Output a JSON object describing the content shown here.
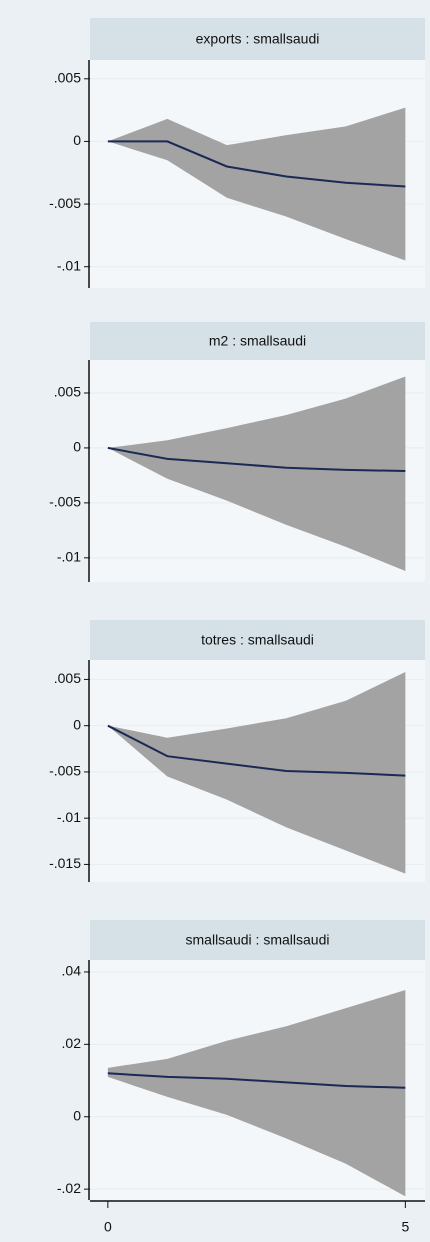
{
  "chart_data": [
    {
      "type": "line",
      "title": "exports : smallsaudi",
      "x": [
        0,
        1,
        2,
        3,
        4,
        5
      ],
      "values": [
        0,
        0,
        -0.002,
        -0.0028,
        -0.0033,
        -0.0036
      ],
      "lower": [
        0,
        -0.0015,
        -0.0045,
        -0.006,
        -0.0078,
        -0.0095
      ],
      "upper": [
        0,
        0.0018,
        -0.0003,
        0.0005,
        0.0012,
        0.0027
      ],
      "color": "#1b2a55",
      "band_color": "#a3a3a3",
      "xlim": [
        -0.3,
        5.33
      ],
      "ylim": [
        -0.0117,
        0.0065
      ],
      "yticks": [
        {
          "value": 0.005,
          "label": ".005"
        },
        0,
        {
          "value": -0.005,
          "label": "-.005"
        },
        {
          "value": -0.01,
          "label": "-.01"
        }
      ],
      "grid": true
    },
    {
      "type": "line",
      "title": "m2 : smallsaudi",
      "x": [
        0,
        1,
        2,
        3,
        4,
        5
      ],
      "values": [
        0,
        -0.001,
        -0.0014,
        -0.0018,
        -0.002,
        -0.0021
      ],
      "lower": [
        0,
        -0.0028,
        -0.0048,
        -0.007,
        -0.009,
        -0.0112
      ],
      "upper": [
        0,
        0.0007,
        0.0018,
        0.003,
        0.0045,
        0.0065
      ],
      "color": "#1b2a55",
      "band_color": "#a3a3a3",
      "xlim": [
        -0.3,
        5.33
      ],
      "ylim": [
        -0.0122,
        0.008
      ],
      "yticks": [
        {
          "value": 0.005,
          "label": ".005"
        },
        0,
        {
          "value": -0.005,
          "label": "-.005"
        },
        {
          "value": -0.01,
          "label": "-.01"
        }
      ],
      "grid": true
    },
    {
      "type": "line",
      "title": "totres : smallsaudi",
      "x": [
        0,
        1,
        2,
        3,
        4,
        5
      ],
      "values": [
        0,
        -0.0033,
        -0.0041,
        -0.0049,
        -0.0051,
        -0.0054
      ],
      "lower": [
        0,
        -0.0055,
        -0.008,
        -0.011,
        -0.0135,
        -0.016
      ],
      "upper": [
        0,
        -0.0013,
        -0.0003,
        0.0008,
        0.0027,
        0.0058
      ],
      "color": "#1b2a55",
      "band_color": "#a3a3a3",
      "xlim": [
        -0.3,
        5.33
      ],
      "ylim": [
        -0.0169,
        0.0071
      ],
      "yticks": [
        {
          "value": 0.005,
          "label": ".005"
        },
        0,
        {
          "value": -0.005,
          "label": "-.005"
        },
        {
          "value": -0.01,
          "label": "-.01"
        },
        {
          "value": -0.015,
          "label": "-.015"
        }
      ],
      "grid": true
    },
    {
      "type": "line",
      "title": "smallsaudi : smallsaudi",
      "x": [
        0,
        1,
        2,
        3,
        4,
        5
      ],
      "values": [
        0.012,
        0.011,
        0.0105,
        0.0095,
        0.0085,
        0.008
      ],
      "lower": [
        0.011,
        0.0055,
        0.0005,
        -0.006,
        -0.013,
        -0.022
      ],
      "upper": [
        0.0135,
        0.016,
        0.021,
        0.025,
        0.03,
        0.035
      ],
      "color": "#1b2a55",
      "band_color": "#a3a3a3",
      "xlim": [
        -0.3,
        5.33
      ],
      "ylim": [
        -0.023,
        0.0433
      ],
      "yticks": [
        {
          "value": 0.04,
          "label": ".04"
        },
        {
          "value": 0.02,
          "label": ".02"
        },
        0,
        {
          "value": -0.02,
          "label": "-.02"
        }
      ],
      "grid": true,
      "xticks": [
        0,
        5
      ]
    }
  ]
}
